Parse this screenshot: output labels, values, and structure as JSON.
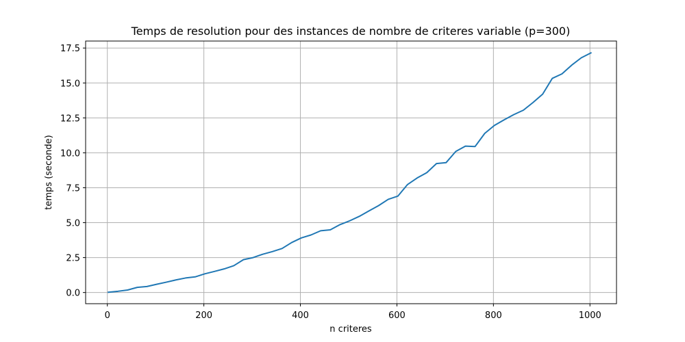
{
  "chart_data": {
    "type": "line",
    "title": "Temps de resolution pour des instances de nombre de criteres variable (p=300)",
    "xlabel": "n criteres",
    "ylabel": "temps (seconde)",
    "xlim": [
      -45,
      1055
    ],
    "ylim": [
      -0.8,
      18.0
    ],
    "xticks": [
      0,
      200,
      400,
      600,
      800,
      1000
    ],
    "yticks": [
      0.0,
      2.5,
      5.0,
      7.5,
      10.0,
      12.5,
      15.0,
      17.5
    ],
    "xtick_labels": [
      "0",
      "200",
      "400",
      "600",
      "800",
      "1000"
    ],
    "ytick_labels": [
      "0.0",
      "2.5",
      "5.0",
      "7.5",
      "10.0",
      "12.5",
      "15.0",
      "17.5"
    ],
    "grid": true,
    "series": [
      {
        "color": "#1f77b4",
        "x": [
          2,
          22,
          42,
          62,
          82,
          102,
          122,
          142,
          162,
          182,
          202,
          222,
          242,
          262,
          282,
          302,
          322,
          342,
          362,
          382,
          402,
          422,
          442,
          462,
          482,
          502,
          522,
          542,
          562,
          582,
          602,
          622,
          642,
          662,
          682,
          702,
          722,
          742,
          762,
          782,
          802,
          822,
          842,
          862,
          882,
          902,
          922,
          942,
          962,
          982,
          1002
        ],
        "y": [
          0.02,
          0.09,
          0.18,
          0.37,
          0.43,
          0.59,
          0.74,
          0.9,
          1.04,
          1.12,
          1.34,
          1.51,
          1.69,
          1.92,
          2.35,
          2.5,
          2.74,
          2.93,
          3.15,
          3.58,
          3.91,
          4.12,
          4.42,
          4.49,
          4.86,
          5.13,
          5.45,
          5.84,
          6.22,
          6.67,
          6.9,
          7.73,
          8.2,
          8.58,
          9.23,
          9.3,
          10.1,
          10.48,
          10.45,
          11.39,
          11.96,
          12.36,
          12.73,
          13.05,
          13.6,
          14.2,
          15.33,
          15.65,
          16.27,
          16.8,
          17.15
        ]
      }
    ]
  }
}
